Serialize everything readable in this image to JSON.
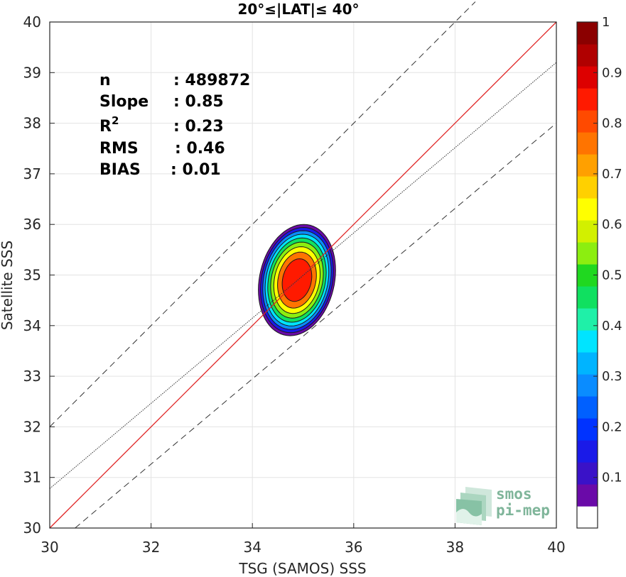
{
  "chart_data": {
    "type": "heatmap",
    "subtype": "density-contour-scatter",
    "title": "20°≤|LAT|≤ 40°",
    "xlabel": "TSG (SAMOS) SSS",
    "ylabel": "Satellite SSS",
    "xlim": [
      30,
      40
    ],
    "ylim": [
      30,
      40
    ],
    "x_ticks": [
      "30",
      "32",
      "34",
      "36",
      "38",
      "40"
    ],
    "y_ticks": [
      "30",
      "31",
      "32",
      "33",
      "34",
      "35",
      "36",
      "37",
      "38",
      "39",
      "40"
    ],
    "grid": true,
    "stats": [
      {
        "label": "n",
        "value": ": 489872"
      },
      {
        "label": "Slope",
        "value": ": 0.85"
      },
      {
        "label": "R",
        "sup": "2",
        "value": ": 0.23"
      },
      {
        "label": "RMS",
        "value": ": 0.46"
      },
      {
        "label": "BIAS",
        "value": ": 0.01"
      }
    ],
    "lines": [
      {
        "kind": "one-to-one",
        "color": "#e02020",
        "points": [
          [
            30,
            30
          ],
          [
            40,
            40
          ]
        ]
      },
      {
        "kind": "regression",
        "color": "#333333",
        "dash": "dotted",
        "slope": 0.85,
        "points": [
          [
            30,
            30.78
          ],
          [
            40,
            39.2
          ]
        ]
      },
      {
        "kind": "plus-bound",
        "color": "#333333",
        "dash": "dashed",
        "points": [
          [
            30,
            32
          ],
          [
            38.4,
            40.4
          ]
        ]
      },
      {
        "kind": "minus-bound",
        "color": "#333333",
        "dash": "dashed",
        "points": [
          [
            30.5,
            30
          ],
          [
            40,
            38.0
          ]
        ]
      }
    ],
    "density": {
      "center": [
        34.88,
        34.9
      ],
      "contour_levels": [
        0.05,
        0.15,
        0.25,
        0.35,
        0.45,
        0.55,
        0.65,
        0.75,
        0.85
      ],
      "outer_extent": {
        "x": [
          34.2,
          35.7
        ],
        "y": [
          33.75,
          35.95
        ]
      }
    },
    "colorbar": {
      "range": [
        0,
        1
      ],
      "ticks": [
        "0.1",
        "0.2",
        "0.3",
        "0.4",
        "0.5",
        "0.6",
        "0.7",
        "0.8",
        "0.9",
        "1"
      ],
      "colors": [
        "#ffffff",
        "#6a0aa8",
        "#3a12c8",
        "#1a1ae8",
        "#0033ff",
        "#0060ff",
        "#0a8cff",
        "#00b4ff",
        "#00e4ff",
        "#1ff0a8",
        "#10e060",
        "#20d820",
        "#8cee10",
        "#d2f000",
        "#ffff00",
        "#ffd000",
        "#ffa000",
        "#ff7400",
        "#ff4a00",
        "#ff1a00",
        "#dd0000",
        "#b00000",
        "#8b0000"
      ]
    }
  },
  "logo": {
    "line1": "smos",
    "line2": "pi-mep"
  }
}
